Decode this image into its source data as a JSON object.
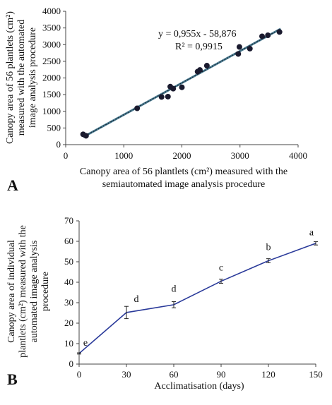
{
  "chart_data": [
    {
      "type": "scatter",
      "panel_label": "A",
      "ylabel_lines": [
        "Canopy area of 56 plantlets (cm²)",
        "measured with the automated",
        "image analysis procedure"
      ],
      "xlabel_lines": [
        "Canopy area of 56 plantlets (cm²) measured with the",
        "semiautomated image analysis procedure"
      ],
      "xlim": [
        0,
        4000
      ],
      "ylim": [
        0,
        4000
      ],
      "xticks": [
        0,
        1000,
        2000,
        3000,
        4000
      ],
      "yticks": [
        0,
        500,
        1000,
        1500,
        2000,
        2500,
        3000,
        3500,
        4000
      ],
      "equation": "y = 0,955x - 58,876",
      "r_squared": "R² = 0,9915",
      "trendline": {
        "slope": 0.955,
        "intercept": -58.876,
        "x_range": [
          300,
          3700
        ]
      },
      "points": [
        {
          "x": 300,
          "y": 310
        },
        {
          "x": 350,
          "y": 265
        },
        {
          "x": 1230,
          "y": 1090
        },
        {
          "x": 1650,
          "y": 1430
        },
        {
          "x": 1760,
          "y": 1440
        },
        {
          "x": 1800,
          "y": 1740
        },
        {
          "x": 1850,
          "y": 1680
        },
        {
          "x": 2000,
          "y": 1720
        },
        {
          "x": 2270,
          "y": 2190
        },
        {
          "x": 2310,
          "y": 2240
        },
        {
          "x": 2430,
          "y": 2370
        },
        {
          "x": 2970,
          "y": 2720
        },
        {
          "x": 2990,
          "y": 2930
        },
        {
          "x": 3170,
          "y": 2880
        },
        {
          "x": 3380,
          "y": 3250
        },
        {
          "x": 3480,
          "y": 3280
        },
        {
          "x": 3680,
          "y": 3380
        }
      ],
      "marker_color": "#1a1a2e",
      "trend_color": "#4a7a90"
    },
    {
      "type": "line",
      "panel_label": "B",
      "ylabel_lines": [
        "Canopy area of individual",
        "plantlets (cm²) measured with the",
        "automated image analysis",
        "procedure"
      ],
      "xlabel": "Acclimatisation (days)",
      "x": [
        0,
        30,
        60,
        90,
        120,
        150
      ],
      "xticks": [
        0,
        30,
        60,
        90,
        120,
        150
      ],
      "xlim": [
        0,
        150
      ],
      "ylim": [
        0,
        70
      ],
      "yticks": [
        0,
        10,
        20,
        30,
        40,
        50,
        60,
        70
      ],
      "series": [
        {
          "values": [
            5.2,
            25.2,
            29.0,
            40.5,
            50.5,
            59.0
          ],
          "errors": [
            0.3,
            3.0,
            1.5,
            1.0,
            1.0,
            0.8
          ],
          "letters": [
            "e",
            "d",
            "d",
            "c",
            "b",
            "a"
          ],
          "color": "#2a3a9a"
        }
      ]
    }
  ]
}
